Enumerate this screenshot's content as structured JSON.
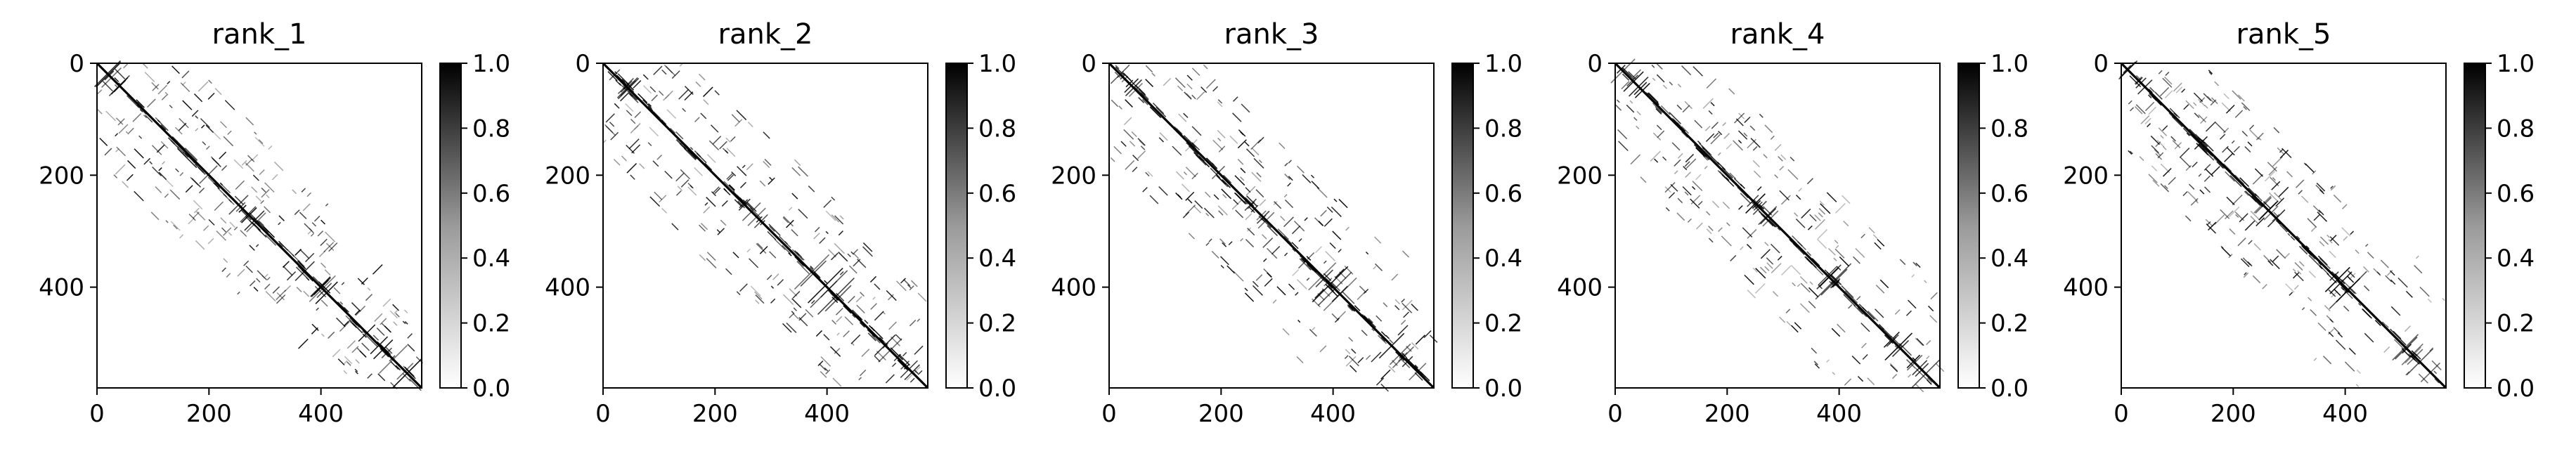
{
  "chart_data": [
    {
      "type": "heatmap",
      "title": "rank_1",
      "seed": 11,
      "matrix_size": 580,
      "colormap": "Greys",
      "xlim": [
        0,
        580
      ],
      "ylim": [
        580,
        0
      ],
      "xticks": [
        0,
        200,
        400
      ],
      "yticks": [
        0,
        200,
        400
      ],
      "colorbar": {
        "vmin": 0.0,
        "vmax": 1.0,
        "ticks": [
          "0.0",
          "0.2",
          "0.4",
          "0.6",
          "0.8",
          "1.0"
        ]
      }
    },
    {
      "type": "heatmap",
      "title": "rank_2",
      "seed": 23,
      "matrix_size": 580,
      "colormap": "Greys",
      "xlim": [
        0,
        580
      ],
      "ylim": [
        580,
        0
      ],
      "xticks": [
        0,
        200,
        400
      ],
      "yticks": [
        0,
        200,
        400
      ],
      "colorbar": {
        "vmin": 0.0,
        "vmax": 1.0,
        "ticks": [
          "0.0",
          "0.2",
          "0.4",
          "0.6",
          "0.8",
          "1.0"
        ]
      }
    },
    {
      "type": "heatmap",
      "title": "rank_3",
      "seed": 37,
      "matrix_size": 580,
      "colormap": "Greys",
      "xlim": [
        0,
        580
      ],
      "ylim": [
        580,
        0
      ],
      "xticks": [
        0,
        200,
        400
      ],
      "yticks": [
        0,
        200,
        400
      ],
      "colorbar": {
        "vmin": 0.0,
        "vmax": 1.0,
        "ticks": [
          "0.0",
          "0.2",
          "0.4",
          "0.6",
          "0.8",
          "1.0"
        ]
      }
    },
    {
      "type": "heatmap",
      "title": "rank_4",
      "seed": 41,
      "matrix_size": 580,
      "colormap": "Greys",
      "xlim": [
        0,
        580
      ],
      "ylim": [
        580,
        0
      ],
      "xticks": [
        0,
        200,
        400
      ],
      "yticks": [
        0,
        200,
        400
      ],
      "colorbar": {
        "vmin": 0.0,
        "vmax": 1.0,
        "ticks": [
          "0.0",
          "0.2",
          "0.4",
          "0.6",
          "0.8",
          "1.0"
        ]
      }
    },
    {
      "type": "heatmap",
      "title": "rank_5",
      "seed": 53,
      "matrix_size": 580,
      "colormap": "Greys",
      "xlim": [
        0,
        580
      ],
      "ylim": [
        580,
        0
      ],
      "xticks": [
        0,
        200,
        400
      ],
      "yticks": [
        0,
        200,
        400
      ],
      "colorbar": {
        "vmin": 0.0,
        "vmax": 1.0,
        "ticks": [
          "0.0",
          "0.2",
          "0.4",
          "0.6",
          "0.8",
          "1.0"
        ]
      }
    }
  ],
  "colors": {
    "ink": "#000000",
    "background": "#ffffff"
  }
}
